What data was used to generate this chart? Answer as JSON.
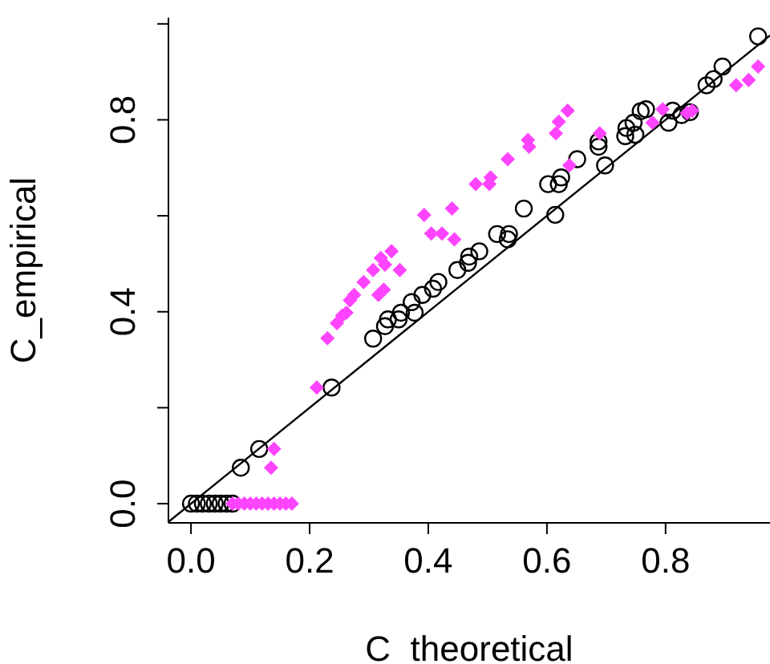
{
  "chart_data": {
    "type": "scatter",
    "xlabel": "C_theoretical",
    "ylabel": "C_empirical",
    "xlim": [
      -0.038,
      0.976
    ],
    "ylim": [
      -0.04,
      1.013
    ],
    "xticks": [
      {
        "value": 0,
        "label": "0.0"
      },
      0.2,
      0.4,
      0.6,
      0.8
    ],
    "yticks": [
      {
        "value": 0,
        "label": "0.0"
      },
      {
        "value": 0.2,
        "label": null
      },
      0.4,
      {
        "value": 0.6,
        "label": null
      },
      0.8,
      {
        "value": 1,
        "label": null
      }
    ],
    "grid": false,
    "legend": false,
    "series": [
      {
        "marker": "circle",
        "color": "#000000",
        "x": [
          0,
          0.01,
          0.02,
          0.03,
          0.04,
          0.05,
          0.06,
          0.07,
          0.084,
          0.115,
          0.237,
          0.307,
          0.327,
          0.332,
          0.35,
          0.354,
          0.377,
          0.372,
          0.39,
          0.408,
          0.417,
          0.449,
          0.467,
          0.469,
          0.486,
          0.534,
          0.516,
          0.536,
          0.561,
          0.614,
          0.602,
          0.62,
          0.624,
          0.651,
          0.698,
          0.687,
          0.687,
          0.732,
          0.734,
          0.749,
          0.746,
          0.758,
          0.767,
          0.805,
          0.812,
          0.827,
          0.841,
          0.869,
          0.881,
          0.896,
          0.956
        ],
        "values": [
          0,
          0,
          0,
          0,
          0,
          0,
          0,
          0,
          0.075,
          0.114,
          0.242,
          0.344,
          0.37,
          0.384,
          0.384,
          0.398,
          0.398,
          0.42,
          0.435,
          0.448,
          0.462,
          0.487,
          0.502,
          0.515,
          0.526,
          0.551,
          0.562,
          0.562,
          0.615,
          0.602,
          0.666,
          0.666,
          0.68,
          0.718,
          0.705,
          0.744,
          0.755,
          0.766,
          0.783,
          0.769,
          0.794,
          0.818,
          0.822,
          0.794,
          0.819,
          0.81,
          0.816,
          0.872,
          0.885,
          0.911,
          0.974
        ]
      },
      {
        "marker": "diamond",
        "color": "#ff44ff",
        "x": [
          0.07,
          0.08,
          0.09,
          0.1,
          0.11,
          0.12,
          0.13,
          0.14,
          0.15,
          0.16,
          0.17,
          0.135,
          0.14,
          0.212,
          0.23,
          0.246,
          0.255,
          0.262,
          0.268,
          0.275,
          0.291,
          0.307,
          0.316,
          0.325,
          0.327,
          0.32,
          0.338,
          0.352,
          0.405,
          0.423,
          0.444,
          0.393,
          0.44,
          0.48,
          0.503,
          0.505,
          0.534,
          0.568,
          0.57,
          0.615,
          0.62,
          0.635,
          0.638,
          0.689,
          0.778,
          0.795,
          0.836,
          0.845,
          0.919,
          0.94,
          0.956
        ],
        "values": [
          0,
          0,
          0,
          0,
          0,
          0,
          0,
          0,
          0,
          0,
          0,
          0.075,
          0.114,
          0.242,
          0.345,
          0.376,
          0.392,
          0.398,
          0.424,
          0.435,
          0.462,
          0.487,
          0.435,
          0.446,
          0.498,
          0.512,
          0.526,
          0.487,
          0.563,
          0.563,
          0.551,
          0.602,
          0.615,
          0.666,
          0.666,
          0.68,
          0.718,
          0.758,
          0.744,
          0.772,
          0.796,
          0.819,
          0.705,
          0.772,
          0.794,
          0.822,
          0.814,
          0.819,
          0.872,
          0.883,
          0.911
        ]
      },
      {
        "type": "line",
        "marker": "none",
        "color": "#000000",
        "x": [
          -0.038,
          0.976
        ],
        "values": [
          -0.038,
          0.976
        ]
      }
    ]
  }
}
